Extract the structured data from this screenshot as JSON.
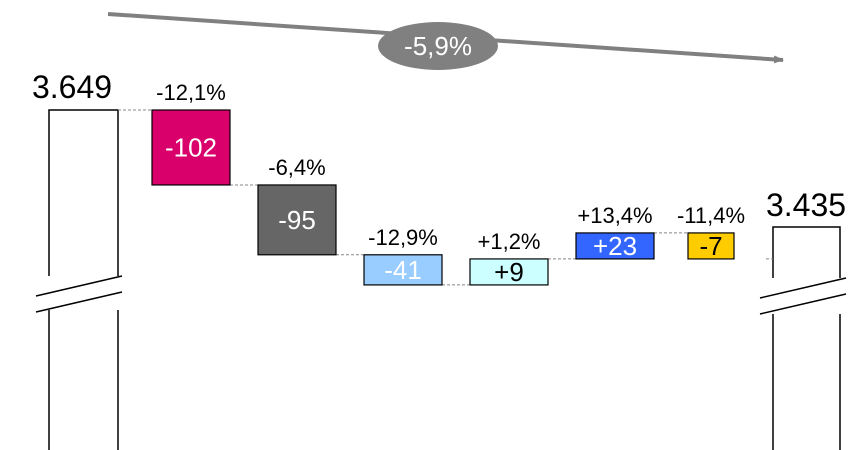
{
  "chart_data": {
    "type": "waterfall",
    "start": {
      "label": "3.649",
      "value": 3649
    },
    "end": {
      "label": "3.435",
      "value": 3435
    },
    "steps": [
      {
        "value": -102,
        "label": "-102",
        "pct": "-12,1%",
        "color": "#d9006c",
        "text_color": "#ffffff"
      },
      {
        "value": -95,
        "label": "-95",
        "pct": "-6,4%",
        "color": "#666666",
        "text_color": "#ffffff"
      },
      {
        "value": -41,
        "label": "-41",
        "pct": "-12,9%",
        "color": "#99ccff",
        "text_color": "#ffffff"
      },
      {
        "value": 9,
        "label": "+9",
        "pct": "+1,2%",
        "color": "#ccffff",
        "text_color": "#000000"
      },
      {
        "value": 23,
        "label": "+23",
        "pct": "+13,4%",
        "color": "#3366ff",
        "text_color": "#ffffff"
      },
      {
        "value": -7,
        "label": "-7",
        "pct": "-11,4%",
        "color": "#ffcc00",
        "text_color": "#000000"
      }
    ],
    "overall_change": "-5,9%",
    "axis_break": true
  }
}
